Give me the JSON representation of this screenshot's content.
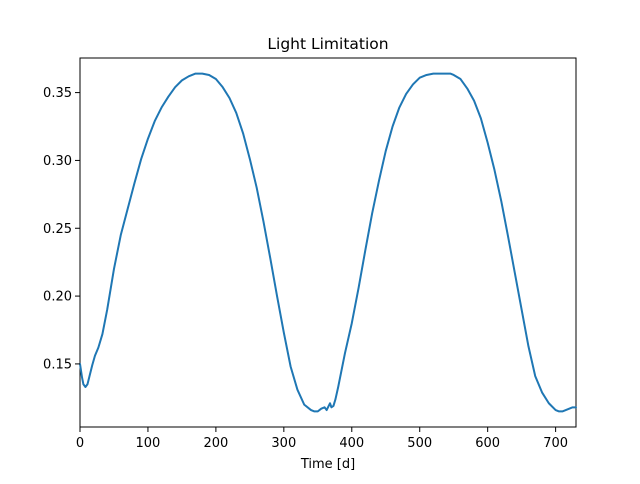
{
  "chart_data": {
    "type": "line",
    "title": "Light Limitation",
    "xlabel": "Time [d]",
    "ylabel": "",
    "xlim": [
      0,
      730
    ],
    "ylim": [
      0.1035,
      0.3755
    ],
    "grid": false,
    "legend": "none",
    "x_ticks": [
      {
        "value": 0,
        "label": "0"
      },
      {
        "value": 100,
        "label": "100"
      },
      {
        "value": 200,
        "label": "200"
      },
      {
        "value": 300,
        "label": "300"
      },
      {
        "value": 400,
        "label": "400"
      },
      {
        "value": 500,
        "label": "500"
      },
      {
        "value": 600,
        "label": "600"
      },
      {
        "value": 700,
        "label": "700"
      }
    ],
    "y_ticks": [
      {
        "value": 0.15,
        "label": "0.15"
      },
      {
        "value": 0.2,
        "label": "0.20"
      },
      {
        "value": 0.25,
        "label": "0.25"
      },
      {
        "value": 0.3,
        "label": "0.30"
      },
      {
        "value": 0.35,
        "label": "0.35"
      }
    ],
    "series": [
      {
        "name": "Light Limitation",
        "color": "#1f77b4",
        "x": [
          0,
          3,
          5,
          8,
          11,
          14,
          18,
          22,
          27,
          33,
          40,
          50,
          60,
          70,
          80,
          90,
          100,
          110,
          120,
          130,
          140,
          150,
          160,
          170,
          180,
          190,
          200,
          210,
          220,
          230,
          240,
          250,
          260,
          270,
          280,
          290,
          300,
          310,
          320,
          330,
          340,
          345,
          350,
          355,
          360,
          363,
          366,
          368,
          370,
          373,
          376,
          380,
          390,
          400,
          410,
          420,
          430,
          440,
          450,
          460,
          470,
          480,
          490,
          500,
          510,
          520,
          530,
          540,
          545,
          550,
          560,
          570,
          580,
          590,
          600,
          610,
          620,
          630,
          640,
          650,
          660,
          670,
          680,
          690,
          700,
          705,
          710,
          715,
          720,
          725,
          730
        ],
        "values": [
          0.15,
          0.14,
          0.135,
          0.133,
          0.135,
          0.141,
          0.149,
          0.156,
          0.162,
          0.172,
          0.19,
          0.22,
          0.245,
          0.264,
          0.283,
          0.301,
          0.316,
          0.329,
          0.339,
          0.347,
          0.354,
          0.359,
          0.362,
          0.364,
          0.364,
          0.363,
          0.36,
          0.354,
          0.346,
          0.335,
          0.32,
          0.301,
          0.28,
          0.255,
          0.228,
          0.2,
          0.173,
          0.148,
          0.131,
          0.12,
          0.116,
          0.115,
          0.115,
          0.117,
          0.118,
          0.116,
          0.119,
          0.121,
          0.118,
          0.119,
          0.124,
          0.133,
          0.158,
          0.18,
          0.206,
          0.234,
          0.261,
          0.285,
          0.307,
          0.325,
          0.339,
          0.349,
          0.356,
          0.361,
          0.363,
          0.364,
          0.364,
          0.364,
          0.364,
          0.363,
          0.36,
          0.353,
          0.344,
          0.331,
          0.313,
          0.293,
          0.27,
          0.244,
          0.217,
          0.19,
          0.163,
          0.141,
          0.129,
          0.121,
          0.116,
          0.115,
          0.115,
          0.116,
          0.117,
          0.118,
          0.118
        ]
      }
    ]
  }
}
